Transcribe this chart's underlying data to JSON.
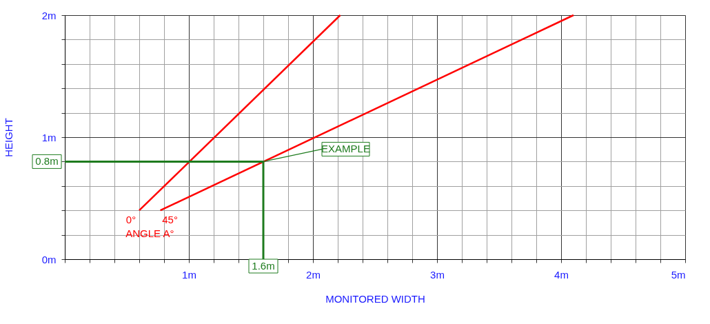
{
  "chart_data": {
    "type": "line",
    "xlabel": "MONITORED WIDTH",
    "ylabel": "HEIGHT",
    "xlim": [
      0,
      5
    ],
    "ylim": [
      0,
      2
    ],
    "xticks": [
      {
        "value": 0,
        "label": null
      },
      {
        "value": 0.2,
        "label": null
      },
      {
        "value": 0.4,
        "label": null
      },
      {
        "value": 0.6,
        "label": null
      },
      {
        "value": 0.8,
        "label": null
      },
      {
        "value": 1,
        "label": "1m"
      },
      {
        "value": 1.2,
        "label": null
      },
      {
        "value": 1.4,
        "label": null
      },
      {
        "value": 1.6,
        "label": null
      },
      {
        "value": 1.8,
        "label": null
      },
      {
        "value": 2,
        "label": "2m"
      },
      {
        "value": 2.2,
        "label": null
      },
      {
        "value": 2.4,
        "label": null
      },
      {
        "value": 2.6,
        "label": null
      },
      {
        "value": 2.8,
        "label": null
      },
      {
        "value": 3,
        "label": "3m"
      },
      {
        "value": 3.2,
        "label": null
      },
      {
        "value": 3.4,
        "label": null
      },
      {
        "value": 3.6,
        "label": null
      },
      {
        "value": 3.8,
        "label": null
      },
      {
        "value": 4,
        "label": "4m"
      },
      {
        "value": 4.2,
        "label": null
      },
      {
        "value": 4.4,
        "label": null
      },
      {
        "value": 4.6,
        "label": null
      },
      {
        "value": 4.8,
        "label": null
      },
      {
        "value": 5,
        "label": "5m"
      }
    ],
    "yticks": [
      {
        "value": 0,
        "label": "0m"
      },
      {
        "value": 0.2,
        "label": null
      },
      {
        "value": 0.4,
        "label": null
      },
      {
        "value": 0.6,
        "label": null
      },
      {
        "value": 0.8,
        "label": null
      },
      {
        "value": 1,
        "label": "1m"
      },
      {
        "value": 1.2,
        "label": null
      },
      {
        "value": 1.4,
        "label": null
      },
      {
        "value": 1.6,
        "label": null
      },
      {
        "value": 1.8,
        "label": null
      },
      {
        "value": 2,
        "label": "2m"
      }
    ],
    "grid": true,
    "marker": "none",
    "line_style": "solid",
    "series": [
      {
        "color": "#ff0000",
        "x": [
          0.6,
          2.22
        ],
        "values": [
          0.4,
          2.0
        ]
      },
      {
        "color": "#ff0000",
        "x": [
          0.77,
          4.1
        ],
        "values": [
          0.4,
          2.0
        ]
      },
      {
        "color": "#1e7b1e",
        "x": [
          0,
          1.6,
          1.6
        ],
        "values": [
          0.8,
          0.8,
          0
        ]
      }
    ],
    "annotations": [
      {
        "text": "0°",
        "x": 0.6,
        "y": 0.4
      },
      {
        "text": "45°",
        "x": 0.77,
        "y": 0.4
      },
      "ANGLE A°",
      {
        "text": "0.8m",
        "x": 0,
        "y": 0.8
      },
      {
        "text": "1.6m",
        "x": 1.6,
        "y": 0
      },
      {
        "text": "EXAMPLE",
        "x": 1.6,
        "y": 0.8
      }
    ]
  }
}
